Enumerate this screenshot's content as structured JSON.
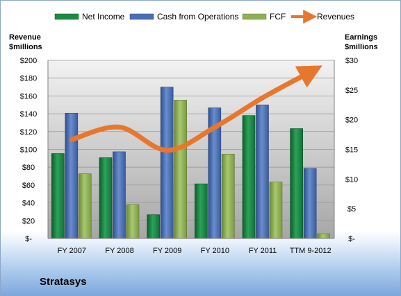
{
  "company": "Stratasys",
  "chart_data": {
    "type": "bar",
    "categories": [
      "FY 2007",
      "FY 2008",
      "FY 2009",
      "FY 2010",
      "FY 2011",
      "TTM 9-2012"
    ],
    "series": [
      {
        "name": "Net Income",
        "axis": "right",
        "color": "#1e8a45",
        "values": [
          14.3,
          13.6,
          4.0,
          9.2,
          20.7,
          18.5
        ]
      },
      {
        "name": "Cash from Operations",
        "axis": "right",
        "color": "#4a6fb5",
        "values": [
          21.1,
          14.6,
          25.5,
          22.0,
          22.5,
          11.8
        ]
      },
      {
        "name": "FCF",
        "axis": "right",
        "color": "#8faf55",
        "values": [
          10.9,
          5.7,
          23.3,
          14.2,
          9.5,
          0.8
        ]
      },
      {
        "name": "Revenues",
        "axis": "left",
        "type": "line",
        "color": "#e8772e",
        "values": [
          111,
          125,
          99,
          125,
          158,
          187
        ]
      }
    ],
    "left_axis": {
      "label_line1": "Revenue",
      "label_line2": "$millions",
      "ylim": [
        0,
        200
      ],
      "ticks": [
        "$-",
        "$20",
        "$40",
        "$60",
        "$80",
        "$100",
        "$120",
        "$140",
        "$160",
        "$180",
        "$200"
      ]
    },
    "right_axis": {
      "label_line1": "Earnings",
      "label_line2": "$millions",
      "ylim": [
        0,
        30
      ],
      "ticks": [
        "$-",
        "$5",
        "$10",
        "$15",
        "$20",
        "$25",
        "$30"
      ]
    },
    "legend_position": "top",
    "grid": true
  }
}
